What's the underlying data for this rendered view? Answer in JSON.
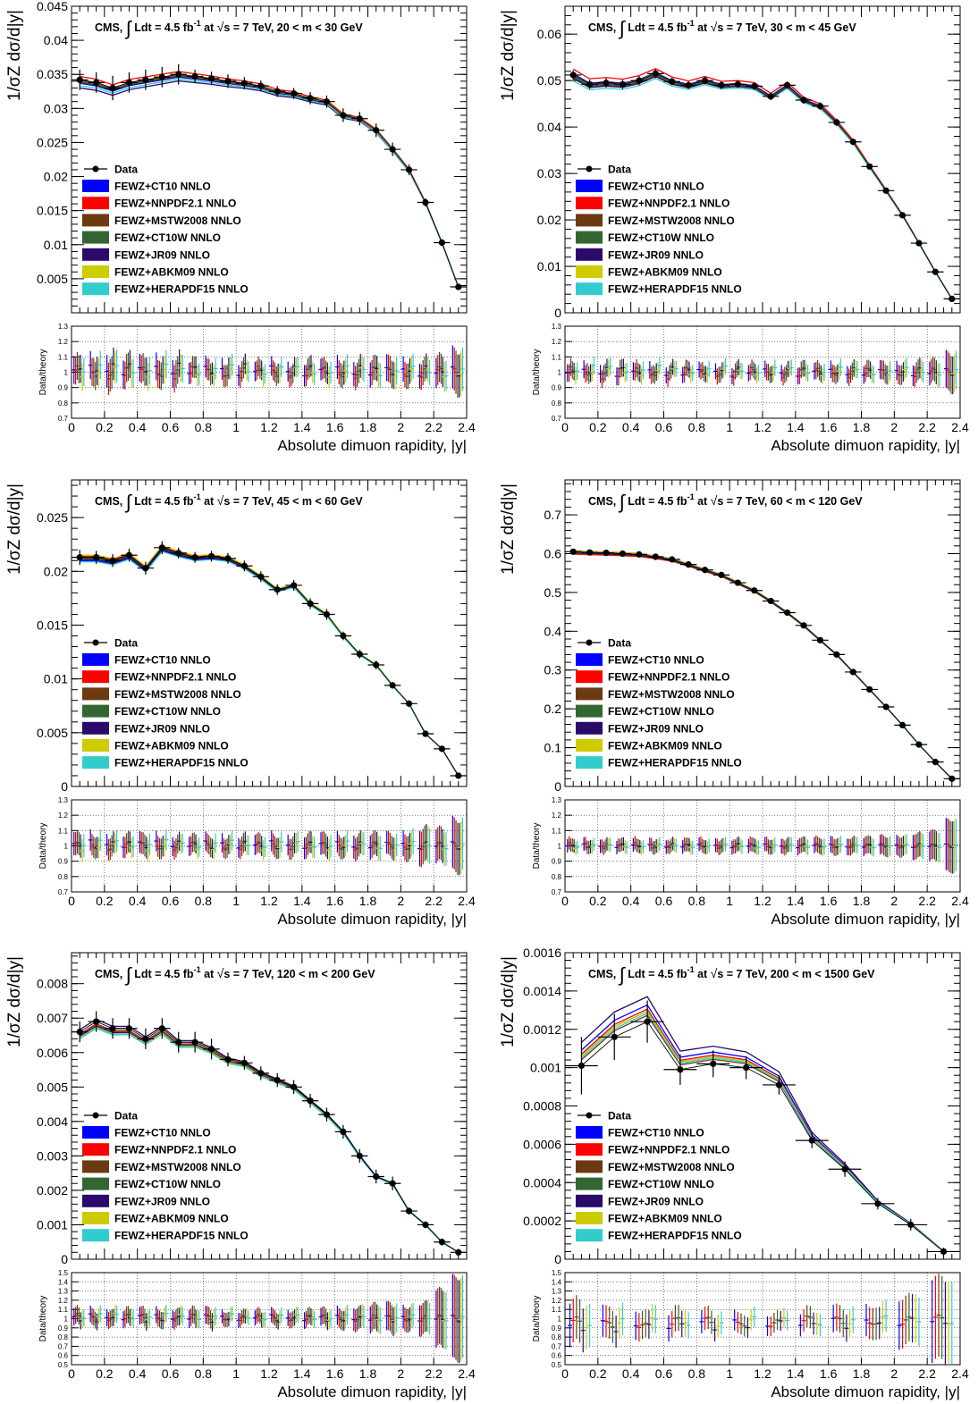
{
  "page": {
    "columns": 2,
    "rows": 3
  },
  "model_labels": [
    "FEWZ+CT10 NNLO",
    "FEWZ+NNPDF2.1 NNLO",
    "FEWZ+MSTW2008 NNLO",
    "FEWZ+CT10W NNLO",
    "FEWZ+JR09 NNLO",
    "FEWZ+ABKM09 NNLO",
    "FEWZ+HERAPDF15 NNLO"
  ],
  "model_colors": [
    "#0000ff",
    "#ff0000",
    "#6b3a10",
    "#336633",
    "#2a0a6b",
    "#cccc00",
    "#33cccc"
  ],
  "chart_data": [
    {
      "type": "line",
      "title_prefix": "CMS,",
      "title_main": "Ldt = 4.5 fb",
      "title_sup": "-1",
      "title_at": "at",
      "title_sqrt": "s = 7 TeV, 20 < m < 30 GeV",
      "ylabel": "1/σZ dσ/d|y|",
      "xlabel": "Absolute dimuon rapidity, |y|",
      "ratio_ylabel": "Data/theory",
      "legend_data": "Data",
      "legend_placement": "middle-left",
      "ylim": [
        0,
        0.045
      ],
      "yticks": [
        "0.005",
        "0.01",
        "0.015",
        "0.02",
        "0.025",
        "0.03",
        "0.035",
        "0.04",
        "0.045"
      ],
      "ytick_values": [
        0.005,
        0.01,
        0.015,
        0.02,
        0.025,
        0.03,
        0.035,
        0.04,
        0.045
      ],
      "xlim": [
        0,
        2.4
      ],
      "xticks": [
        "0",
        "0.2",
        "0.4",
        "0.6",
        "0.8",
        "1",
        "1.2",
        "1.4",
        "1.6",
        "1.8",
        "2",
        "2.2",
        "2.4"
      ],
      "xtick_values": [
        0,
        0.2,
        0.4,
        0.6,
        0.8,
        1,
        1.2,
        1.4,
        1.6,
        1.8,
        2,
        2.2,
        2.4
      ],
      "ratio_ylim": [
        0.7,
        1.3
      ],
      "ratio_yticks": [
        "0.7",
        "0.8",
        "0.9",
        "1",
        "1.1",
        "1.2",
        "1.3"
      ],
      "ratio_ytick_values": [
        0.7,
        0.8,
        0.9,
        1,
        1.1,
        1.2,
        1.3
      ],
      "x": [
        0.05,
        0.15,
        0.25,
        0.35,
        0.45,
        0.55,
        0.65,
        0.75,
        0.85,
        0.95,
        1.05,
        1.15,
        1.25,
        1.35,
        1.45,
        1.55,
        1.65,
        1.75,
        1.85,
        1.95,
        2.05,
        2.15,
        2.25,
        2.35
      ],
      "x_err": 0.05,
      "data": [
        0.0342,
        0.0338,
        0.033,
        0.0338,
        0.0342,
        0.0346,
        0.035,
        0.0347,
        0.0344,
        0.034,
        0.0337,
        0.0333,
        0.0325,
        0.0322,
        0.0315,
        0.031,
        0.029,
        0.0285,
        0.0268,
        0.024,
        0.021,
        0.0162,
        0.0103,
        0.0038
      ],
      "data_err": [
        0.0015,
        0.0015,
        0.0018,
        0.0015,
        0.0015,
        0.0015,
        0.0015,
        0.001,
        0.001,
        0.001,
        0.0009,
        0.0008,
        0.0008,
        0.0008,
        0.0009,
        0.0009,
        0.001,
        0.001,
        0.001,
        0.001,
        0.0008,
        0.0006,
        0.0005,
        0.0003
      ],
      "ratio_spread": 0.08
    },
    {
      "type": "line",
      "title_prefix": "CMS,",
      "title_main": "Ldt = 4.5 fb",
      "title_sup": "-1",
      "title_at": "at",
      "title_sqrt": "s = 7 TeV, 30 < m < 45 GeV",
      "ylabel": "1/σZ dσ/d|y|",
      "xlabel": "Absolute dimuon rapidity, |y|",
      "ratio_ylabel": "Data/theory",
      "legend_data": "Data",
      "legend_placement": "middle-left",
      "ylim": [
        0,
        0.066
      ],
      "yticks": [
        "0",
        "0.01",
        "0.02",
        "0.03",
        "0.04",
        "0.05",
        "0.06"
      ],
      "ytick_values": [
        0,
        0.01,
        0.02,
        0.03,
        0.04,
        0.05,
        0.06
      ],
      "xlim": [
        0,
        2.4
      ],
      "xticks": [
        "0",
        "0.2",
        "0.4",
        "0.6",
        "0.8",
        "1",
        "1.2",
        "1.4",
        "1.6",
        "1.8",
        "2",
        "2.2",
        "2.4"
      ],
      "xtick_values": [
        0,
        0.2,
        0.4,
        0.6,
        0.8,
        1,
        1.2,
        1.4,
        1.6,
        1.8,
        2,
        2.2,
        2.4
      ],
      "ratio_ylim": [
        0.7,
        1.3
      ],
      "ratio_yticks": [
        "0.7",
        "0.8",
        "0.9",
        "1",
        "1.1",
        "1.2",
        "1.3"
      ],
      "ratio_ytick_values": [
        0.7,
        0.8,
        0.9,
        1,
        1.1,
        1.2,
        1.3
      ],
      "x": [
        0.05,
        0.15,
        0.25,
        0.35,
        0.45,
        0.55,
        0.65,
        0.75,
        0.85,
        0.95,
        1.05,
        1.15,
        1.25,
        1.35,
        1.45,
        1.55,
        1.65,
        1.75,
        1.85,
        1.95,
        2.05,
        2.15,
        2.25,
        2.35
      ],
      "x_err": 0.05,
      "data": [
        0.0512,
        0.0492,
        0.0495,
        0.0492,
        0.05,
        0.0515,
        0.0498,
        0.049,
        0.05,
        0.049,
        0.0492,
        0.0488,
        0.0466,
        0.049,
        0.0458,
        0.0445,
        0.041,
        0.0368,
        0.0315,
        0.0263,
        0.021,
        0.015,
        0.0088,
        0.003
      ],
      "data_err": [
        0.001,
        0.001,
        0.001,
        0.001,
        0.001,
        0.001,
        0.0008,
        0.0008,
        0.0008,
        0.0008,
        0.0008,
        0.0008,
        0.0008,
        0.0008,
        0.0008,
        0.0008,
        0.0008,
        0.0007,
        0.0006,
        0.0006,
        0.0005,
        0.0004,
        0.0003,
        0.0002
      ],
      "ratio_spread": 0.06
    },
    {
      "type": "line",
      "title_prefix": "CMS,",
      "title_main": "Ldt = 4.5 fb",
      "title_sup": "-1",
      "title_at": "at",
      "title_sqrt": "s = 7 TeV, 45 < m < 60 GeV",
      "ylabel": "1/σZ dσ/d|y|",
      "xlabel": "Absolute dimuon rapidity, |y|",
      "ratio_ylabel": "Data/theory",
      "legend_data": "Data",
      "legend_placement": "middle-left",
      "ylim": [
        0,
        0.0285
      ],
      "yticks": [
        "0",
        "0.005",
        "0.01",
        "0.015",
        "0.02",
        "0.025"
      ],
      "ytick_values": [
        0,
        0.005,
        0.01,
        0.015,
        0.02,
        0.025
      ],
      "xlim": [
        0,
        2.4
      ],
      "xticks": [
        "0",
        "0.2",
        "0.4",
        "0.6",
        "0.8",
        "1",
        "1.2",
        "1.4",
        "1.6",
        "1.8",
        "2",
        "2.2",
        "2.4"
      ],
      "xtick_values": [
        0,
        0.2,
        0.4,
        0.6,
        0.8,
        1,
        1.2,
        1.4,
        1.6,
        1.8,
        2,
        2.2,
        2.4
      ],
      "ratio_ylim": [
        0.7,
        1.3
      ],
      "ratio_yticks": [
        "0.7",
        "0.8",
        "0.9",
        "1",
        "1.1",
        "1.2",
        "1.3"
      ],
      "ratio_ytick_values": [
        0.7,
        0.8,
        0.9,
        1,
        1.1,
        1.2,
        1.3
      ],
      "x": [
        0.05,
        0.15,
        0.25,
        0.35,
        0.45,
        0.55,
        0.65,
        0.75,
        0.85,
        0.95,
        1.05,
        1.15,
        1.25,
        1.35,
        1.45,
        1.55,
        1.65,
        1.75,
        1.85,
        1.95,
        2.05,
        2.15,
        2.25,
        2.35
      ],
      "x_err": 0.05,
      "data": [
        0.0213,
        0.0213,
        0.021,
        0.0215,
        0.0203,
        0.0222,
        0.0217,
        0.0213,
        0.0214,
        0.0212,
        0.0205,
        0.0195,
        0.0183,
        0.0187,
        0.017,
        0.016,
        0.014,
        0.0123,
        0.0113,
        0.0094,
        0.0077,
        0.0049,
        0.0035,
        0.001
      ],
      "data_err": [
        0.0007,
        0.0006,
        0.0006,
        0.0006,
        0.0006,
        0.0006,
        0.0005,
        0.0005,
        0.0005,
        0.0005,
        0.0005,
        0.0005,
        0.0005,
        0.0005,
        0.0005,
        0.0005,
        0.0004,
        0.0004,
        0.0004,
        0.0003,
        0.0003,
        0.0003,
        0.0002,
        0.0001
      ],
      "ratio_spread": 0.06
    },
    {
      "type": "line",
      "title_prefix": "CMS,",
      "title_main": "Ldt = 4.5 fb",
      "title_sup": "-1",
      "title_at": "at",
      "title_sqrt": "s = 7 TeV, 60 < m < 120 GeV",
      "ylabel": "1/σZ dσ/d|y|",
      "xlabel": "Absolute dimuon rapidity, |y|",
      "ratio_ylabel": "Data/theory",
      "legend_data": "Data",
      "legend_placement": "middle-left",
      "ylim": [
        0,
        0.79
      ],
      "yticks": [
        "0",
        "0.1",
        "0.2",
        "0.3",
        "0.4",
        "0.5",
        "0.6",
        "0.7"
      ],
      "ytick_values": [
        0,
        0.1,
        0.2,
        0.3,
        0.4,
        0.5,
        0.6,
        0.7
      ],
      "xlim": [
        0,
        2.4
      ],
      "xticks": [
        "0",
        "0.2",
        "0.4",
        "0.6",
        "0.8",
        "1",
        "1.2",
        "1.4",
        "1.6",
        "1.8",
        "2",
        "2.2",
        "2.4"
      ],
      "xtick_values": [
        0,
        0.2,
        0.4,
        0.6,
        0.8,
        1,
        1.2,
        1.4,
        1.6,
        1.8,
        2,
        2.2,
        2.4
      ],
      "ratio_ylim": [
        0.7,
        1.3
      ],
      "ratio_yticks": [
        "0.7",
        "0.8",
        "0.9",
        "1",
        "1.1",
        "1.2",
        "1.3"
      ],
      "ratio_ytick_values": [
        0.7,
        0.8,
        0.9,
        1,
        1.1,
        1.2,
        1.3
      ],
      "x": [
        0.05,
        0.15,
        0.25,
        0.35,
        0.45,
        0.55,
        0.65,
        0.75,
        0.85,
        0.95,
        1.05,
        1.15,
        1.25,
        1.35,
        1.45,
        1.55,
        1.65,
        1.75,
        1.85,
        1.95,
        2.05,
        2.15,
        2.25,
        2.35
      ],
      "x_err": 0.05,
      "data": [
        0.605,
        0.603,
        0.602,
        0.6,
        0.598,
        0.592,
        0.585,
        0.572,
        0.558,
        0.545,
        0.525,
        0.505,
        0.478,
        0.448,
        0.415,
        0.377,
        0.34,
        0.295,
        0.25,
        0.205,
        0.158,
        0.108,
        0.063,
        0.02
      ],
      "data_err": [
        0.006,
        0.006,
        0.006,
        0.006,
        0.006,
        0.006,
        0.006,
        0.006,
        0.006,
        0.006,
        0.006,
        0.006,
        0.006,
        0.006,
        0.006,
        0.006,
        0.006,
        0.005,
        0.005,
        0.005,
        0.004,
        0.004,
        0.003,
        0.002
      ],
      "ratio_spread": 0.03
    },
    {
      "type": "line",
      "title_prefix": "CMS,",
      "title_main": "Ldt = 4.5 fb",
      "title_sup": "-1",
      "title_at": "at",
      "title_sqrt": "s = 7 TeV, 120 < m < 200 GeV",
      "ylabel": "1/σZ dσ/d|y|",
      "xlabel": "Absolute dimuon rapidity, |y|",
      "ratio_ylabel": "Data/theory",
      "legend_data": "Data",
      "legend_placement": "middle-left",
      "ylim": [
        0,
        0.0089
      ],
      "yticks": [
        "0",
        "0.001",
        "0.002",
        "0.003",
        "0.004",
        "0.005",
        "0.006",
        "0.007",
        "0.008"
      ],
      "ytick_values": [
        0,
        0.001,
        0.002,
        0.003,
        0.004,
        0.005,
        0.006,
        0.007,
        0.008
      ],
      "xlim": [
        0,
        2.4
      ],
      "xticks": [
        "0",
        "0.2",
        "0.4",
        "0.6",
        "0.8",
        "1",
        "1.2",
        "1.4",
        "1.6",
        "1.8",
        "2",
        "2.2",
        "2.4"
      ],
      "xtick_values": [
        0,
        0.2,
        0.4,
        0.6,
        0.8,
        1,
        1.2,
        1.4,
        1.6,
        1.8,
        2,
        2.2,
        2.4
      ],
      "ratio_ylim": [
        0.5,
        1.5
      ],
      "ratio_yticks": [
        "0.5",
        "0.6",
        "0.7",
        "0.8",
        "0.9",
        "1",
        "1.1",
        "1.2",
        "1.3",
        "1.4",
        "1.5"
      ],
      "ratio_ytick_values": [
        0.5,
        0.6,
        0.7,
        0.8,
        0.9,
        1,
        1.1,
        1.2,
        1.3,
        1.4,
        1.5
      ],
      "x": [
        0.05,
        0.15,
        0.25,
        0.35,
        0.45,
        0.55,
        0.65,
        0.75,
        0.85,
        0.95,
        1.05,
        1.15,
        1.25,
        1.35,
        1.45,
        1.55,
        1.65,
        1.75,
        1.85,
        1.95,
        2.05,
        2.15,
        2.25,
        2.35
      ],
      "x_err": 0.05,
      "data": [
        0.0066,
        0.0069,
        0.0067,
        0.0067,
        0.0064,
        0.0067,
        0.0063,
        0.0063,
        0.0061,
        0.0058,
        0.0057,
        0.0054,
        0.0052,
        0.005,
        0.0046,
        0.0042,
        0.0037,
        0.003,
        0.0024,
        0.0022,
        0.0014,
        0.001,
        0.0005,
        0.0002
      ],
      "data_err": [
        0.0003,
        0.0003,
        0.0003,
        0.0003,
        0.0003,
        0.0003,
        0.0003,
        0.0003,
        0.0003,
        0.0002,
        0.0002,
        0.0002,
        0.0002,
        0.0002,
        0.0002,
        0.0002,
        0.0002,
        0.0002,
        0.0002,
        0.0002,
        0.0001,
        0.0001,
        0.0001,
        0.0001
      ],
      "ratio_spread": 0.08
    },
    {
      "type": "line",
      "title_prefix": "CMS,",
      "title_main": "Ldt = 4.5 fb",
      "title_sup": "-1",
      "title_at": "at",
      "title_sqrt": "s = 7 TeV, 200 < m < 1500 GeV",
      "ylabel": "1/σZ dσ/d|y|",
      "xlabel": "Absolute dimuon rapidity, |y|",
      "ratio_ylabel": "Data/theory",
      "legend_data": "Data",
      "legend_placement": "middle-left",
      "ylim": [
        0,
        0.0016
      ],
      "yticks": [
        "0",
        "0.0002",
        "0.0004",
        "0.0006",
        "0.0008",
        "0.001",
        "0.0012",
        "0.0014",
        "0.0016"
      ],
      "ytick_values": [
        0,
        0.0002,
        0.0004,
        0.0006,
        0.0008,
        0.001,
        0.0012,
        0.0014,
        0.0016
      ],
      "xlim": [
        0,
        2.4
      ],
      "xticks": [
        "0",
        "0.2",
        "0.4",
        "0.6",
        "0.8",
        "1",
        "1.2",
        "1.4",
        "1.6",
        "1.8",
        "2",
        "2.2",
        "2.4"
      ],
      "xtick_values": [
        0,
        0.2,
        0.4,
        0.6,
        0.8,
        1,
        1.2,
        1.4,
        1.6,
        1.8,
        2,
        2.2,
        2.4
      ],
      "ratio_ylim": [
        0.5,
        1.5
      ],
      "ratio_yticks": [
        "0.5",
        "0.6",
        "0.7",
        "0.8",
        "0.9",
        "1",
        "1.1",
        "1.2",
        "1.3",
        "1.4",
        "1.5"
      ],
      "ratio_ytick_values": [
        0.5,
        0.6,
        0.7,
        0.8,
        0.9,
        1,
        1.1,
        1.2,
        1.3,
        1.4,
        1.5
      ],
      "x": [
        0.1,
        0.3,
        0.5,
        0.7,
        0.9,
        1.1,
        1.3,
        1.5,
        1.7,
        1.9,
        2.1,
        2.3
      ],
      "x_err": 0.1,
      "data": [
        0.00101,
        0.00116,
        0.00124,
        0.00099,
        0.00102,
        0.001,
        0.00091,
        0.00062,
        0.00047,
        0.00029,
        0.00018,
        4e-05
      ],
      "data_err": [
        0.00015,
        0.00012,
        0.00011,
        8e-05,
        7e-05,
        6e-05,
        5e-05,
        4e-05,
        4e-05,
        3e-05,
        3e-05,
        2e-05
      ],
      "ratio_spread": 0.12
    }
  ]
}
